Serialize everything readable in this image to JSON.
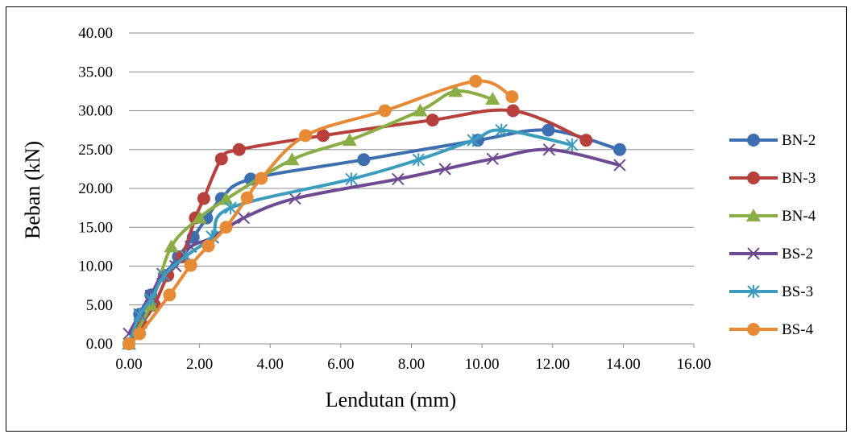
{
  "chart_data": {
    "type": "line",
    "title": "",
    "xlabel": "Lendutan (mm)",
    "ylabel": "Beban (kN)",
    "xlim": [
      0,
      16
    ],
    "ylim": [
      0,
      40
    ],
    "x_ticks": [
      "0.00",
      "2.00",
      "4.00",
      "6.00",
      "8.00",
      "10.00",
      "12.00",
      "14.00",
      "16.00"
    ],
    "y_ticks": [
      "0.00",
      "5.00",
      "10.00",
      "15.00",
      "20.00",
      "25.00",
      "30.00",
      "35.00",
      "40.00"
    ],
    "grid": "horizontal",
    "legend_position": "right",
    "series": [
      {
        "name": "BN-2",
        "color": "#3d6eb0",
        "marker": "circle",
        "points": [
          [
            0.0,
            0.0
          ],
          [
            0.3,
            3.8
          ],
          [
            0.62,
            6.3
          ],
          [
            1.0,
            8.8
          ],
          [
            1.4,
            11.2
          ],
          [
            1.82,
            13.7
          ],
          [
            2.2,
            16.2
          ],
          [
            2.62,
            18.7
          ],
          [
            3.45,
            21.2
          ],
          [
            6.65,
            23.7
          ],
          [
            9.88,
            26.2
          ],
          [
            11.88,
            27.5
          ],
          [
            13.9,
            25.0
          ]
        ]
      },
      {
        "name": "BN-3",
        "color": "#b7403c",
        "marker": "circle",
        "points": [
          [
            0.0,
            0.0
          ],
          [
            0.35,
            2.5
          ],
          [
            0.72,
            5.0
          ],
          [
            1.1,
            8.8
          ],
          [
            1.5,
            11.2
          ],
          [
            1.88,
            16.2
          ],
          [
            2.12,
            18.7
          ],
          [
            2.62,
            23.8
          ],
          [
            3.12,
            25.0
          ],
          [
            5.5,
            26.8
          ],
          [
            8.6,
            28.8
          ],
          [
            10.88,
            30.0
          ],
          [
            12.95,
            26.2
          ]
        ]
      },
      {
        "name": "BN-4",
        "color": "#8aad45",
        "marker": "triangle",
        "points": [
          [
            0.0,
            0.0
          ],
          [
            0.62,
            5.0
          ],
          [
            1.2,
            12.5
          ],
          [
            2.0,
            16.2
          ],
          [
            2.75,
            18.6
          ],
          [
            4.62,
            23.7
          ],
          [
            6.25,
            26.2
          ],
          [
            8.25,
            30.0
          ],
          [
            9.25,
            32.5
          ],
          [
            10.3,
            31.5
          ]
        ]
      },
      {
        "name": "BS-2",
        "color": "#6e4a93",
        "marker": "x",
        "points": [
          [
            0.0,
            1.3
          ],
          [
            0.3,
            3.8
          ],
          [
            0.62,
            6.2
          ],
          [
            0.95,
            9.0
          ],
          [
            1.32,
            10.0
          ],
          [
            1.75,
            12.5
          ],
          [
            2.38,
            13.7
          ],
          [
            3.25,
            16.2
          ],
          [
            4.7,
            18.7
          ],
          [
            7.62,
            21.2
          ],
          [
            8.95,
            22.5
          ],
          [
            10.3,
            23.8
          ],
          [
            11.9,
            25.0
          ],
          [
            13.9,
            23.0
          ]
        ]
      },
      {
        "name": "BS-3",
        "color": "#3c9cbe",
        "marker": "star",
        "points": [
          [
            0.0,
            0.0
          ],
          [
            0.3,
            3.7
          ],
          [
            0.62,
            5.7
          ],
          [
            1.0,
            8.8
          ],
          [
            1.62,
            11.3
          ],
          [
            2.35,
            13.8
          ],
          [
            2.88,
            17.5
          ],
          [
            6.3,
            21.2
          ],
          [
            8.2,
            23.7
          ],
          [
            9.75,
            26.2
          ],
          [
            10.55,
            27.5
          ],
          [
            12.55,
            25.6
          ]
        ]
      },
      {
        "name": "BS-4",
        "color": "#e68a35",
        "marker": "circle",
        "points": [
          [
            0.0,
            0.0
          ],
          [
            0.3,
            1.3
          ],
          [
            1.15,
            6.3
          ],
          [
            1.75,
            10.1
          ],
          [
            2.25,
            12.6
          ],
          [
            2.75,
            15.0
          ],
          [
            3.35,
            18.8
          ],
          [
            3.75,
            21.3
          ],
          [
            5.0,
            26.8
          ],
          [
            7.25,
            30.0
          ],
          [
            9.82,
            33.8
          ],
          [
            10.85,
            31.8
          ]
        ]
      }
    ]
  }
}
